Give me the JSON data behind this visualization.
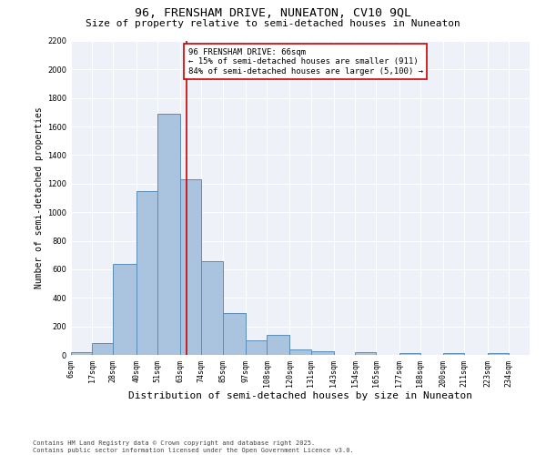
{
  "title": "96, FRENSHAM DRIVE, NUNEATON, CV10 9QL",
  "subtitle": "Size of property relative to semi-detached houses in Nuneaton",
  "xlabel": "Distribution of semi-detached houses by size in Nuneaton",
  "ylabel": "Number of semi-detached properties",
  "bin_labels": [
    "6sqm",
    "17sqm",
    "28sqm",
    "40sqm",
    "51sqm",
    "63sqm",
    "74sqm",
    "85sqm",
    "97sqm",
    "108sqm",
    "120sqm",
    "131sqm",
    "143sqm",
    "154sqm",
    "165sqm",
    "177sqm",
    "188sqm",
    "200sqm",
    "211sqm",
    "223sqm",
    "234sqm"
  ],
  "bar_values": [
    20,
    80,
    640,
    1150,
    1690,
    1230,
    660,
    295,
    100,
    140,
    40,
    25,
    0,
    20,
    0,
    15,
    0,
    10,
    0,
    10
  ],
  "bar_color": "#aac4e0",
  "bar_edge_color": "#5b8db8",
  "vline_x": 66,
  "vline_color": "#cc0000",
  "annotation_text": "96 FRENSHAM DRIVE: 66sqm\n← 15% of semi-detached houses are smaller (911)\n84% of semi-detached houses are larger (5,100) →",
  "annotation_box_color": "#cc0000",
  "footer": "Contains HM Land Registry data © Crown copyright and database right 2025.\nContains public sector information licensed under the Open Government Licence v3.0.",
  "ylim": [
    0,
    2200
  ],
  "bg_color": "#eef2f8",
  "title_fontsize": 9.5,
  "subtitle_fontsize": 8,
  "tick_fontsize": 6,
  "ylabel_fontsize": 7,
  "xlabel_fontsize": 8,
  "footer_fontsize": 5,
  "annotation_fontsize": 6.5
}
